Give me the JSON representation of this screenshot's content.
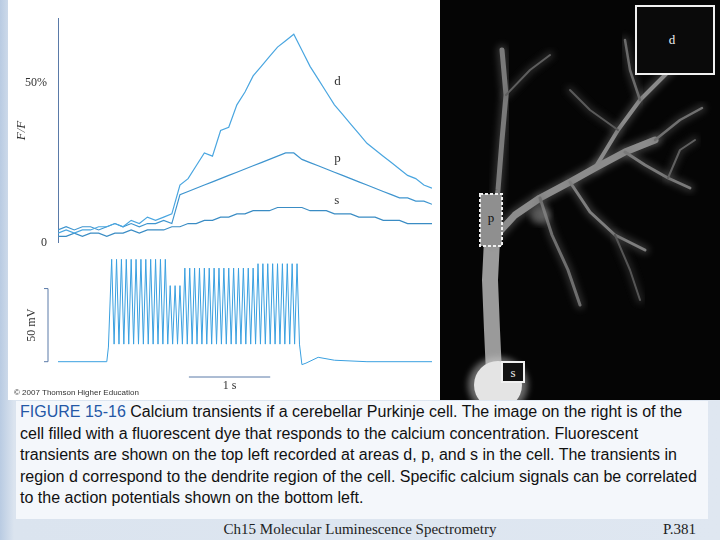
{
  "chart_data": [
    {
      "type": "line",
      "ylabel": "F/F",
      "x": [
        0,
        0.1,
        0.2,
        0.3,
        0.4,
        0.5,
        0.6,
        0.7,
        0.8,
        0.9,
        1.0,
        1.1,
        1.2,
        1.3,
        1.4,
        1.5,
        1.6,
        1.7,
        1.8,
        1.9,
        2.0,
        2.1,
        2.2,
        2.3,
        2.4,
        2.5,
        2.6,
        2.7,
        2.8,
        2.9,
        3.0,
        3.1,
        3.2,
        3.3,
        3.4,
        3.5,
        3.6,
        3.7,
        3.8,
        3.9,
        4.0,
        4.1,
        4.2,
        4.3,
        4.4,
        4.5,
        4.6
      ],
      "series": [
        {
          "name": "d",
          "color": "#4aa6e0",
          "values": [
            3,
            4,
            3,
            4,
            4,
            5,
            5,
            6,
            5,
            7,
            6,
            8,
            7,
            8,
            9,
            18,
            20,
            24,
            28,
            27,
            35,
            36,
            43,
            47,
            52,
            55,
            58,
            61,
            63,
            65,
            60,
            55,
            51,
            47,
            43,
            40,
            37,
            34,
            31,
            29,
            27,
            25,
            23,
            21,
            20,
            18,
            17
          ]
        },
        {
          "name": "p",
          "color": "#3f95cf",
          "values": [
            4,
            5,
            4,
            5,
            5,
            4,
            5,
            6,
            5,
            6,
            5,
            6,
            6,
            7,
            6,
            15,
            16,
            17,
            18,
            19,
            20,
            21,
            22,
            23,
            24,
            25,
            26,
            27,
            28,
            28,
            26,
            25,
            24,
            23,
            22,
            21,
            20,
            19,
            18,
            17,
            16,
            15,
            14,
            14,
            13,
            13,
            12
          ]
        },
        {
          "name": "s",
          "color": "#3a8cc4",
          "values": [
            2,
            2,
            3,
            2,
            3,
            3,
            2,
            3,
            3,
            4,
            3,
            4,
            4,
            4,
            5,
            5,
            6,
            6,
            7,
            7,
            8,
            8,
            9,
            9,
            10,
            10,
            10,
            11,
            11,
            11,
            11,
            10,
            10,
            10,
            9,
            9,
            9,
            8,
            8,
            8,
            7,
            7,
            7,
            6,
            6,
            6,
            6
          ]
        }
      ],
      "xlim": [
        0,
        4.6
      ],
      "ylim": [
        0,
        70
      ],
      "yticks": [
        0,
        {
          "value": 50,
          "label": "50%"
        }
      ],
      "tick_labels": "y",
      "grid": false
    },
    {
      "type": "line",
      "x": [
        0,
        0.6,
        0.62,
        0.66,
        0.69,
        0.72,
        0.75,
        0.78,
        0.81,
        0.84,
        0.87,
        0.9,
        0.93,
        0.96,
        0.99,
        1.02,
        1.05,
        1.08,
        1.11,
        1.14,
        1.17,
        1.2,
        1.23,
        1.26,
        1.29,
        1.32,
        1.35,
        1.38,
        1.41,
        1.44,
        1.47,
        1.5,
        1.53,
        1.56,
        1.59,
        1.62,
        1.65,
        1.68,
        1.71,
        1.74,
        1.77,
        1.8,
        1.83,
        1.86,
        1.89,
        1.92,
        1.95,
        1.98,
        2.01,
        2.04,
        2.07,
        2.1,
        2.13,
        2.16,
        2.19,
        2.22,
        2.25,
        2.28,
        2.31,
        2.34,
        2.37,
        2.4,
        2.43,
        2.46,
        2.49,
        2.52,
        2.55,
        2.58,
        2.61,
        2.64,
        2.67,
        2.7,
        2.73,
        2.76,
        2.79,
        2.82,
        2.85,
        2.88,
        2.91,
        2.94,
        2.97,
        3.0,
        3.05,
        3.2,
        3.4,
        3.8,
        4.6
      ],
      "values": [
        0,
        0,
        10,
        70,
        12,
        70,
        12,
        70,
        12,
        70,
        12,
        70,
        12,
        70,
        12,
        70,
        12,
        70,
        12,
        70,
        12,
        70,
        12,
        70,
        12,
        70,
        12,
        52,
        12,
        52,
        12,
        52,
        12,
        64,
        12,
        64,
        12,
        64,
        12,
        64,
        12,
        64,
        12,
        64,
        12,
        64,
        12,
        64,
        12,
        64,
        12,
        64,
        12,
        64,
        12,
        64,
        12,
        64,
        12,
        64,
        12,
        64,
        12,
        67,
        12,
        67,
        12,
        67,
        12,
        67,
        12,
        67,
        12,
        67,
        12,
        67,
        12,
        67,
        12,
        67,
        12,
        -2,
        -1,
        3,
        1,
        0,
        0
      ],
      "color": "#3aa0e0",
      "xlim": [
        0,
        4.6
      ],
      "ylim": [
        -5,
        75
      ],
      "tick_labels": false,
      "grid": false,
      "y_scale_bar": {
        "value": 50,
        "label": "50 mV"
      },
      "x_scale_bar": {
        "value": 1,
        "label": "1 s"
      }
    }
  ],
  "copyright": "© 2007 Thomson Higher Education",
  "image": {
    "regions": [
      "d",
      "p",
      "s"
    ]
  },
  "caption": {
    "label": "FIGURE 15-16",
    "text": "Calcium transients if a cerebellar Purkinje cell. The image on the right is of the cell filled with a fluorescent dye that responds to the calcium concentration. Fluorescent transients are shown on the top left recorded at areas d, p, and s in the cell. The transients in region d correspond to the dendrite region of the cell. Specific calcium signals can be correlated to the action potentials shown on the bottom left."
  },
  "footer": {
    "title": "Ch15 Molecular Luminescence Spectrometry",
    "page": "P.381"
  }
}
